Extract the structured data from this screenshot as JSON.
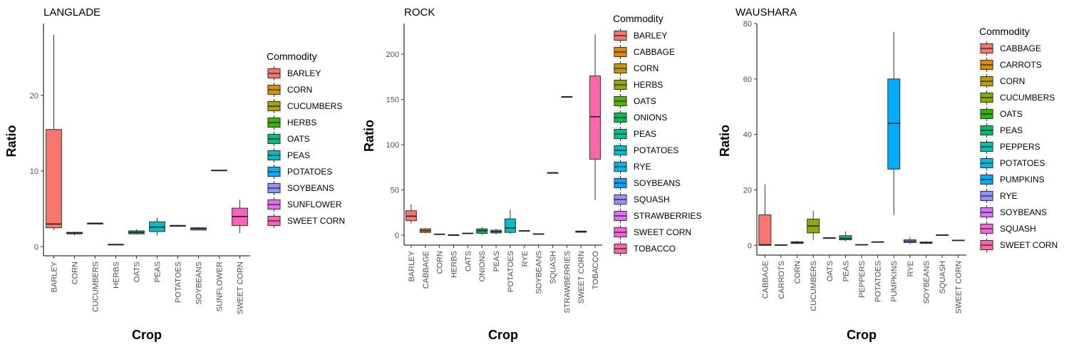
{
  "axis": {
    "xlabel": "Crop",
    "ylabel": "Ratio"
  },
  "legend_title": "Commodity",
  "colors": {
    "BARLEY": "#F8766D",
    "CABBAGE": "#F8766D",
    "CARROTS": "#E38900",
    "CORN": "#C49A00",
    "CUCUMBERS": "#99A800",
    "HERBS": "#53B400",
    "OATS": "#00BC56",
    "ONIONS": "#00BC56",
    "PEAS": "#00C094",
    "PEPPERS": "#00BFC4",
    "POTATOES": "#00B6EB",
    "PUMPKINS": "#06A4FF",
    "RYE": "#8F91FF",
    "SOYBEANS": "#A58AFF",
    "SQUASH": "#DF70F8",
    "STRAWBERRIES": "#E76BF3",
    "SUNFLOWER": "#DF70F8",
    "SWEET CORN": "#FB61D7",
    "TOBACCO": "#FF66A8"
  },
  "chart_data": [
    {
      "type": "box",
      "title": "LANGLADE",
      "xlabel": "Crop",
      "ylabel": "Ratio",
      "ylim": [
        -1.2,
        29.5
      ],
      "yticks": [
        0,
        10,
        20
      ],
      "categories": [
        "BARLEY",
        "CORN",
        "CUCUMBERS",
        "HERBS",
        "OATS",
        "PEAS",
        "POTATOES",
        "SOYBEANS",
        "SUNFLOWER",
        "SWEET CORN"
      ],
      "colors": [
        "#F8766D",
        "#D39200",
        "#A3A500",
        "#39B600",
        "#00BF7D",
        "#00BFC4",
        "#00B0F6",
        "#9590FF",
        "#E76BF3",
        "#FF62BC"
      ],
      "boxes": [
        {
          "min": 2.2,
          "q1": 2.5,
          "median": 3.0,
          "q3": 15.5,
          "max": 28.0
        },
        {
          "min": 1.5,
          "q1": 1.7,
          "median": 1.8,
          "q3": 1.9,
          "max": 2.0
        },
        {
          "min": 3.0,
          "q1": 3.0,
          "median": 3.1,
          "q3": 3.1,
          "max": 3.1
        },
        {
          "min": 0.3,
          "q1": 0.3,
          "median": 0.3,
          "q3": 0.3,
          "max": 0.3
        },
        {
          "min": 1.6,
          "q1": 1.7,
          "median": 1.9,
          "q3": 2.1,
          "max": 2.3
        },
        {
          "min": 1.5,
          "q1": 2.0,
          "median": 2.6,
          "q3": 3.3,
          "max": 3.8
        },
        {
          "min": 2.6,
          "q1": 2.7,
          "median": 2.8,
          "q3": 2.8,
          "max": 2.9
        },
        {
          "min": 2.2,
          "q1": 2.2,
          "median": 2.4,
          "q3": 2.5,
          "max": 2.6
        },
        {
          "min": 10.1,
          "q1": 10.1,
          "median": 10.1,
          "q3": 10.1,
          "max": 10.1
        },
        {
          "min": 1.8,
          "q1": 2.8,
          "median": 4.0,
          "q3": 5.1,
          "max": 6.2
        }
      ],
      "legend": [
        "BARLEY",
        "CORN",
        "CUCUMBERS",
        "HERBS",
        "OATS",
        "PEAS",
        "POTATOES",
        "SOYBEANS",
        "SUNFLOWER",
        "SWEET CORN"
      ]
    },
    {
      "type": "box",
      "title": "ROCK",
      "xlabel": "Crop",
      "ylabel": "Ratio",
      "ylim": [
        -11,
        234
      ],
      "yticks": [
        0,
        50,
        100,
        150,
        200
      ],
      "categories": [
        "BARLEY",
        "CABBAGE",
        "CORN",
        "HERBS",
        "OATS",
        "ONIONS",
        "PEAS",
        "POTATOES",
        "RYE",
        "SOYBEANS",
        "SQUASH",
        "STRAWBERRIES",
        "SWEET CORN",
        "TOBACCO"
      ],
      "colors": [
        "#F8766D",
        "#E38900",
        "#C49A00",
        "#99A800",
        "#53B400",
        "#00BC56",
        "#00C094",
        "#00BFC4",
        "#00B6EB",
        "#06A4FF",
        "#A58AFF",
        "#DF70F8",
        "#FB61D7",
        "#FF66A8"
      ],
      "boxes": [
        {
          "min": 13,
          "q1": 16,
          "median": 21,
          "q3": 27,
          "max": 34
        },
        {
          "min": 2,
          "q1": 3,
          "median": 5,
          "q3": 7,
          "max": 8
        },
        {
          "min": 0.5,
          "q1": 0.7,
          "median": 1,
          "q3": 1.3,
          "max": 1.5
        },
        {
          "min": 0.3,
          "q1": 0.3,
          "median": 0.3,
          "q3": 0.3,
          "max": 0.3
        },
        {
          "min": 1.6,
          "q1": 1.8,
          "median": 2,
          "q3": 2.2,
          "max": 2.4
        },
        {
          "min": 0,
          "q1": 2,
          "median": 5,
          "q3": 7,
          "max": 9
        },
        {
          "min": 1,
          "q1": 2.5,
          "median": 4,
          "q3": 5.5,
          "max": 7
        },
        {
          "min": 1,
          "q1": 3,
          "median": 8,
          "q3": 18,
          "max": 28
        },
        {
          "min": 4.5,
          "q1": 4.6,
          "median": 4.8,
          "q3": 5,
          "max": 5.2
        },
        {
          "min": 1,
          "q1": 1,
          "median": 1.3,
          "q3": 1.5,
          "max": 1.5
        },
        {
          "min": 69,
          "q1": 69,
          "median": 69,
          "q3": 69,
          "max": 69
        },
        {
          "min": 153,
          "q1": 153,
          "median": 153,
          "q3": 153,
          "max": 153
        },
        {
          "min": 2.5,
          "q1": 3.2,
          "median": 4,
          "q3": 4.5,
          "max": 5.2
        },
        {
          "min": 39,
          "q1": 84,
          "median": 131,
          "q3": 176,
          "max": 222
        }
      ],
      "legend": [
        "BARLEY",
        "CABBAGE",
        "CORN",
        "HERBS",
        "OATS",
        "ONIONS",
        "PEAS",
        "POTATOES",
        "RYE",
        "SOYBEANS",
        "SQUASH",
        "STRAWBERRIES",
        "SWEET CORN",
        "TOBACCO"
      ]
    },
    {
      "type": "box",
      "title": "WAUSHARA",
      "xlabel": "Crop",
      "ylabel": "Ratio",
      "ylim": [
        -3.5,
        80
      ],
      "yticks": [
        0,
        20,
        40,
        60,
        80
      ],
      "categories": [
        "CABBAGE",
        "CARROTS",
        "CORN",
        "CUCUMBERS",
        "OATS",
        "PEAS",
        "PEPPERS",
        "POTATOES",
        "PUMPKINS",
        "RYE",
        "SOYBEANS",
        "SQUASH",
        "SWEET CORN"
      ],
      "colors": [
        "#F8766D",
        "#E18A00",
        "#BE9C00",
        "#8CAB00",
        "#24B700",
        "#00BE70",
        "#00C1AB",
        "#00BBDA",
        "#00ACFC",
        "#8B93FF",
        "#D575FE",
        "#F962DD",
        "#FF65AC"
      ],
      "boxes": [
        {
          "min": 0,
          "q1": 0,
          "median": 0.2,
          "q3": 11,
          "max": 22
        },
        {
          "min": 0,
          "q1": 0,
          "median": 0.1,
          "q3": 0.2,
          "max": 0.3
        },
        {
          "min": 0.5,
          "q1": 0.7,
          "median": 1,
          "q3": 1.3,
          "max": 1.6
        },
        {
          "min": 2,
          "q1": 4.5,
          "median": 7,
          "q3": 9.5,
          "max": 12.5
        },
        {
          "min": 2.5,
          "q1": 2.6,
          "median": 2.7,
          "q3": 2.7,
          "max": 2.8
        },
        {
          "min": 1.5,
          "q1": 2,
          "median": 2.5,
          "q3": 3.5,
          "max": 5
        },
        {
          "min": 0.1,
          "q1": 0.2,
          "median": 0.2,
          "q3": 0.3,
          "max": 0.3
        },
        {
          "min": 1,
          "q1": 1.1,
          "median": 1.2,
          "q3": 1.3,
          "max": 1.4
        },
        {
          "min": 11,
          "q1": 27.5,
          "median": 44,
          "q3": 60,
          "max": 77
        },
        {
          "min": 0.5,
          "q1": 1,
          "median": 1.5,
          "q3": 2,
          "max": 3
        },
        {
          "min": 0.5,
          "q1": 0.7,
          "median": 1,
          "q3": 1.2,
          "max": 1.5
        },
        {
          "min": 3.5,
          "q1": 3.6,
          "median": 3.7,
          "q3": 3.8,
          "max": 3.9
        },
        {
          "min": 1.6,
          "q1": 1.7,
          "median": 1.8,
          "q3": 1.9,
          "max": 2
        }
      ],
      "legend": [
        "CABBAGE",
        "CARROTS",
        "CORN",
        "CUCUMBERS",
        "OATS",
        "PEAS",
        "PEPPERS",
        "POTATOES",
        "PUMPKINS",
        "RYE",
        "SOYBEANS",
        "SQUASH",
        "SWEET CORN"
      ]
    }
  ]
}
